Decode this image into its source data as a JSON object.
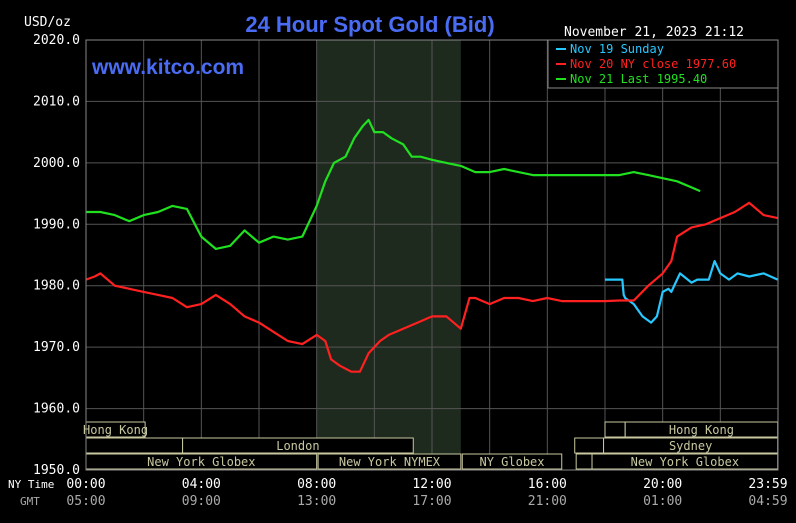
{
  "chart_data": {
    "type": "line",
    "title": "24 Hour Spot Gold (Bid)",
    "watermark": "www.kitco.com",
    "timestamp": "November 21, 2023 21:12",
    "ylabel": "USD/oz",
    "ylim": [
      1950,
      2020
    ],
    "yticks": [
      "2020.0",
      "2010.0",
      "2000.0",
      "1990.0",
      "1980.0",
      "1970.0",
      "1960.0",
      "1950.0"
    ],
    "xlim": [
      0,
      24
    ],
    "x_row_labels": {
      "ny": "NY Time",
      "gmt": "GMT"
    },
    "xticks_ny": [
      "00:00",
      "04:00",
      "08:00",
      "12:00",
      "16:00",
      "20:00",
      "23:59"
    ],
    "xticks_gmt": [
      "05:00",
      "09:00",
      "13:00",
      "17:00",
      "21:00",
      "01:00",
      "04:59"
    ],
    "grid": true,
    "legend_position": "top-right",
    "highlight_band": [
      8,
      13
    ],
    "colors": {
      "background": "#000000",
      "grid": "#555555",
      "highlight": "#1e2a1e",
      "title": "#4a6cf5",
      "axis_text": "#ffffff",
      "session_box": "#c8c8a0"
    },
    "series": [
      {
        "name": "Nov 19 Sunday",
        "color": "#27c8ff",
        "x": [
          18.0,
          18.6,
          18.65,
          18.7,
          19.0,
          19.3,
          19.6,
          19.8,
          20.0,
          20.2,
          20.3,
          20.6,
          21.0,
          21.2,
          21.6,
          21.8,
          22.0,
          22.3,
          22.6,
          23.0,
          23.5,
          23.99
        ],
        "y": [
          1981,
          1981,
          1978.5,
          1978,
          1977,
          1975,
          1974,
          1975,
          1979,
          1979.5,
          1979,
          1982,
          1980.5,
          1981,
          1981,
          1984,
          1982,
          1981,
          1982,
          1981.5,
          1982,
          1981
        ]
      },
      {
        "name": "Nov 20 NY close 1977.60",
        "color": "#ff2020",
        "x": [
          0.0,
          0.3,
          0.5,
          1.0,
          1.5,
          2.0,
          2.5,
          3.0,
          3.5,
          4.0,
          4.5,
          5.0,
          5.5,
          6.0,
          6.5,
          7.0,
          7.5,
          8.0,
          8.3,
          8.5,
          8.8,
          9.2,
          9.5,
          9.8,
          10.2,
          10.5,
          11.0,
          11.5,
          12.0,
          12.5,
          13.0,
          13.3,
          13.5,
          14.0,
          14.5,
          15.0,
          15.5,
          16.0,
          16.5,
          17.0,
          17.5,
          18.0,
          18.5,
          19.0,
          19.5,
          20.0,
          20.3,
          20.5,
          21.0,
          21.5,
          22.0,
          22.5,
          23.0,
          23.5,
          23.99
        ],
        "y": [
          1981,
          1981.5,
          1982,
          1980,
          1979.5,
          1979,
          1978.5,
          1978,
          1976.5,
          1977,
          1978.5,
          1977,
          1975,
          1974,
          1972.5,
          1971,
          1970.5,
          1972,
          1971,
          1968,
          1967,
          1966,
          1966,
          1969,
          1971,
          1972,
          1973,
          1974,
          1975,
          1975,
          1973,
          1978,
          1978,
          1977,
          1978,
          1978,
          1977.5,
          1978,
          1977.5,
          1977.5,
          1977.5,
          1977.5,
          1977.6,
          1977.6,
          1980,
          1982,
          1984,
          1988,
          1989.5,
          1990,
          1991,
          1992,
          1993.5,
          1991.5,
          1991
        ]
      },
      {
        "name": "Nov 21 Last 1995.40",
        "color": "#20e020",
        "x": [
          0.0,
          0.5,
          1.0,
          1.5,
          2.0,
          2.5,
          3.0,
          3.5,
          4.0,
          4.5,
          5.0,
          5.5,
          6.0,
          6.5,
          7.0,
          7.5,
          8.0,
          8.3,
          8.6,
          9.0,
          9.3,
          9.6,
          9.8,
          10.0,
          10.3,
          10.6,
          11.0,
          11.3,
          11.6,
          12.0,
          12.5,
          13.0,
          13.5,
          14.0,
          14.5,
          15.0,
          15.5,
          16.0,
          16.5,
          17.0,
          17.5,
          18.0,
          18.5,
          19.0,
          19.5,
          20.0,
          20.5,
          21.0,
          21.3
        ],
        "y": [
          1992,
          1992,
          1991.5,
          1990.5,
          1991.5,
          1992,
          1993,
          1992.5,
          1988,
          1986,
          1986.5,
          1989,
          1987,
          1988,
          1987.5,
          1988,
          1993,
          1997,
          2000,
          2001,
          2004,
          2006,
          2007,
          2005,
          2005,
          2004,
          2003,
          2001,
          2001,
          2000.5,
          2000,
          1999.5,
          1998.5,
          1998.5,
          1999,
          1998.5,
          1998,
          1998,
          1998,
          1998,
          1998,
          1998,
          1998,
          1998.5,
          1998,
          1997.5,
          1997,
          1996,
          1995.4
        ]
      }
    ],
    "sessions": [
      {
        "label": "Hong Kong",
        "row": 0,
        "start": 0.0,
        "end": 2.05
      },
      {
        "label": "",
        "row": 1,
        "start": 0.0,
        "end": 3.35
      },
      {
        "label": "London",
        "row": 1,
        "start": 3.35,
        "end": 11.35
      },
      {
        "label": "New York Globex",
        "row": 2,
        "start": 0.0,
        "end": 8.0
      },
      {
        "label": "New York NYMEX",
        "row": 2,
        "start": 8.05,
        "end": 13.0
      },
      {
        "label": "NY Globex",
        "row": 2,
        "start": 13.05,
        "end": 16.5
      },
      {
        "label": "",
        "row": 0,
        "start": 18.0,
        "end": 18.7
      },
      {
        "label": "Hong Kong",
        "row": 0,
        "start": 18.7,
        "end": 23.99
      },
      {
        "label": "",
        "row": 1,
        "start": 16.95,
        "end": 17.95
      },
      {
        "label": "Sydney",
        "row": 1,
        "start": 17.95,
        "end": 23.99
      },
      {
        "label": "",
        "row": 2,
        "start": 17.0,
        "end": 17.55
      },
      {
        "label": "New York Globex",
        "row": 2,
        "start": 17.55,
        "end": 23.99
      }
    ]
  }
}
